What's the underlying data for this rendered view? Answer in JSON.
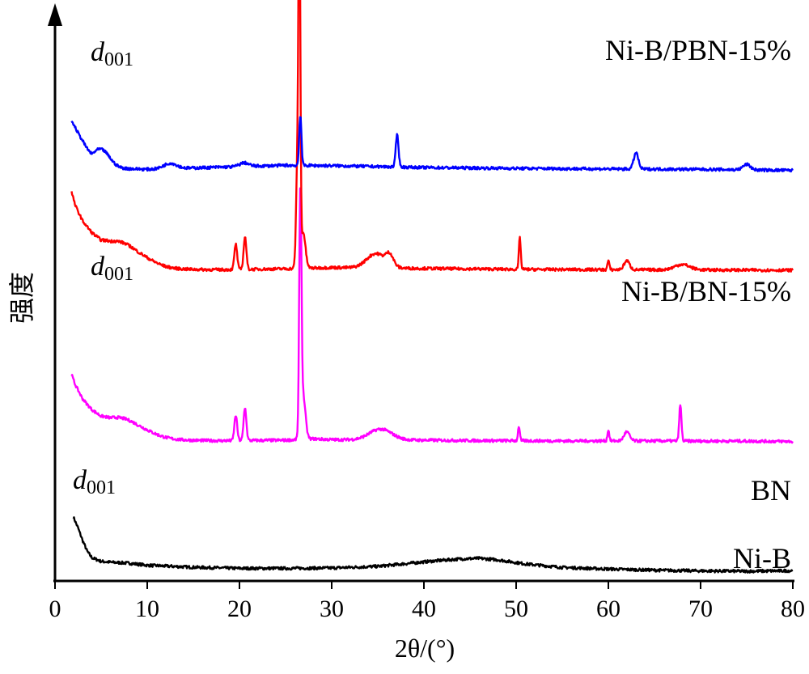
{
  "chart_data": {
    "type": "line",
    "xlabel": "2θ/(°)",
    "ylabel": "强度",
    "xlim": [
      0,
      80
    ],
    "xticks": [
      0,
      10,
      20,
      30,
      40,
      50,
      60,
      70,
      80
    ],
    "grid": false,
    "legend": "none",
    "y_units": "arbitrary (stacked, offset traces)",
    "series": [
      {
        "name": "Ni-B",
        "color": "#000000",
        "offset": 0,
        "peaks": [
          [
            45.5,
            0.35,
            6.5
          ]
        ],
        "points": [
          [
            2,
            30.0
          ],
          [
            2.5,
            24.0
          ],
          [
            3,
            17.0
          ],
          [
            3.5,
            11.0
          ],
          [
            4,
            7.5
          ],
          [
            5,
            5.5
          ],
          [
            6,
            5.0
          ],
          [
            8,
            4.5
          ],
          [
            10,
            3.3
          ],
          [
            15,
            2.2
          ],
          [
            20,
            1.6
          ],
          [
            25,
            1.6
          ],
          [
            30,
            1.8
          ],
          [
            35,
            2.6
          ],
          [
            38,
            4.0
          ],
          [
            41,
            5.4
          ],
          [
            44,
            6.5
          ],
          [
            46,
            6.8
          ],
          [
            48,
            6.0
          ],
          [
            51,
            3.8
          ],
          [
            55,
            2.0
          ],
          [
            60,
            1.2
          ],
          [
            65,
            0.6
          ],
          [
            70,
            0.2
          ],
          [
            75,
            0.0
          ],
          [
            80,
            0.3
          ]
        ]
      },
      {
        "name": "BN",
        "color": "#ff00ff",
        "offset": 72,
        "annotation": "d001",
        "annotation_x": 7,
        "peaks": [
          [
            7.1,
            10,
            2.5
          ],
          [
            19.6,
            14,
            0.15
          ],
          [
            20.6,
            18,
            0.15
          ],
          [
            26.6,
            130,
            0.12
          ],
          [
            26.9,
            24,
            0.25
          ],
          [
            35.3,
            6,
            1.2
          ],
          [
            50.3,
            8,
            0.1
          ],
          [
            60.0,
            6,
            0.1
          ],
          [
            62.0,
            5,
            0.3
          ],
          [
            67.8,
            20,
            0.12
          ]
        ],
        "points": [
          [
            1.8,
            36.0
          ],
          [
            2.2,
            30.0
          ],
          [
            3,
            21.0
          ],
          [
            4,
            13.0
          ],
          [
            5,
            7.0
          ],
          [
            6,
            4.0
          ],
          [
            9,
            1.6
          ],
          [
            12,
            0.8
          ],
          [
            18,
            0.4
          ],
          [
            25,
            0.7
          ],
          [
            28,
            1.5
          ],
          [
            30,
            1.0
          ],
          [
            38,
            0.8
          ],
          [
            45,
            0.5
          ],
          [
            55,
            0.3
          ],
          [
            65,
            0.3
          ],
          [
            70,
            0.2
          ],
          [
            75,
            0.2
          ],
          [
            80,
            0.0
          ]
        ]
      },
      {
        "name": "Ni-B/BN-15%",
        "color": "#ff0000",
        "offset": 167,
        "annotation": "d001",
        "annotation_x": 7,
        "peaks": [
          [
            7.0,
            12,
            2.5
          ],
          [
            19.6,
            14,
            0.15
          ],
          [
            20.6,
            18,
            0.15
          ],
          [
            26.5,
            192,
            0.1
          ],
          [
            26.3,
            60,
            0.15
          ],
          [
            26.9,
            20,
            0.25
          ],
          [
            34.8,
            8,
            1.0
          ],
          [
            36.3,
            6,
            0.4
          ],
          [
            50.4,
            18,
            0.1
          ],
          [
            60.0,
            5,
            0.1
          ],
          [
            62.0,
            5,
            0.3
          ],
          [
            68.0,
            3,
            0.8
          ]
        ],
        "points": [
          [
            1.8,
            42.0
          ],
          [
            2.2,
            34.0
          ],
          [
            3,
            24.0
          ],
          [
            4,
            15.0
          ],
          [
            5,
            8.0
          ],
          [
            6,
            5.0
          ],
          [
            9,
            1.5
          ],
          [
            12,
            0.5
          ],
          [
            18,
            0.3
          ],
          [
            25,
            0.8
          ],
          [
            30,
            1.5
          ],
          [
            40,
            1.0
          ],
          [
            50,
            0.5
          ],
          [
            60,
            0.3
          ],
          [
            70,
            0.2
          ],
          [
            80,
            0.0
          ]
        ]
      },
      {
        "name": "Ni-B/PBN-15%",
        "color": "#0000ff",
        "offset": 222,
        "annotation": "d001",
        "annotation_x": 5,
        "peaks": [
          [
            5.0,
            10,
            0.9
          ],
          [
            12.5,
            3,
            0.7
          ],
          [
            20.5,
            2,
            0.5
          ],
          [
            26.6,
            28,
            0.12
          ],
          [
            37.1,
            18,
            0.15
          ],
          [
            63.0,
            9,
            0.25
          ],
          [
            75.0,
            3,
            0.4
          ]
        ],
        "points": [
          [
            1.8,
            28.0
          ],
          [
            2.2,
            24.0
          ],
          [
            3,
            16.0
          ],
          [
            4,
            4.0
          ],
          [
            5,
            2.0
          ],
          [
            7,
            1.5
          ],
          [
            10,
            1.0
          ],
          [
            20,
            2.5
          ],
          [
            25,
            3.2
          ],
          [
            30,
            3.0
          ],
          [
            40,
            2.0
          ],
          [
            50,
            1.5
          ],
          [
            60,
            1.2
          ],
          [
            70,
            1.0
          ],
          [
            80,
            0.4
          ]
        ]
      }
    ],
    "y_display_range": [
      0,
      290
    ]
  }
}
